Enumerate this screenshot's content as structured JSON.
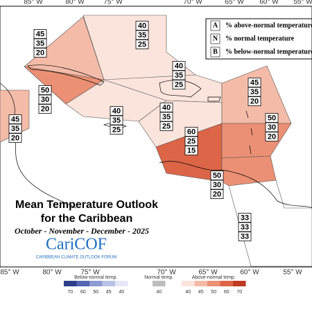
{
  "title": "Mean Temperature Outlook",
  "subtitle": "for the Caribbean",
  "period": "October - November - December - 2025",
  "logo": {
    "name": "CariCOF",
    "tagline": "CARIBBEAN CLIMATE OUTLOOK FORUM"
  },
  "key": [
    {
      "letter": "A",
      "text": "% above-normal temperature"
    },
    {
      "letter": "N",
      "text": "% normal temperature"
    },
    {
      "letter": "B",
      "text": "% below-normal temperature"
    }
  ],
  "lon_top": [
    "85° W",
    "80° W",
    "75° W",
    "70° W",
    "65° W",
    "60° W",
    "55° W"
  ],
  "lon_bottom": [
    "85° W",
    "80° W",
    "75° W",
    "70° W",
    "65° W",
    "60° W",
    "55° W"
  ],
  "regions": [
    {
      "values": [
        45,
        35,
        20
      ]
    },
    {
      "values": [
        40,
        35,
        25
      ]
    },
    {
      "values": [
        50,
        30,
        20
      ]
    },
    {
      "values": [
        45,
        35,
        20
      ]
    },
    {
      "values": [
        40,
        35,
        25
      ]
    },
    {
      "values": [
        40,
        35,
        25
      ]
    },
    {
      "values": [
        40,
        35,
        25
      ]
    },
    {
      "values": [
        45,
        35,
        20
      ]
    },
    {
      "values": [
        60,
        25,
        15
      ]
    },
    {
      "values": [
        50,
        30,
        20
      ]
    },
    {
      "values": [
        50,
        30,
        20
      ]
    },
    {
      "values": [
        33,
        33,
        33
      ]
    }
  ],
  "colorbar": {
    "below": {
      "label": "Below-normal temp.",
      "ticks": [
        70,
        60,
        50,
        45,
        40
      ],
      "colors": [
        "#2c3e8c",
        "#5467b5",
        "#8d9bd3",
        "#b9c2e6",
        "#e4e8f6"
      ]
    },
    "normal": {
      "label": "Normal temp.",
      "ticks": [
        40
      ],
      "colors": [
        "#bdbdbd"
      ]
    },
    "above": {
      "label": "Above-normal temp.",
      "ticks": [
        40,
        45,
        50,
        60,
        70
      ],
      "colors": [
        "#fbe4db",
        "#f4bba8",
        "#eb9074",
        "#dc6547",
        "#bf3a22"
      ]
    }
  }
}
